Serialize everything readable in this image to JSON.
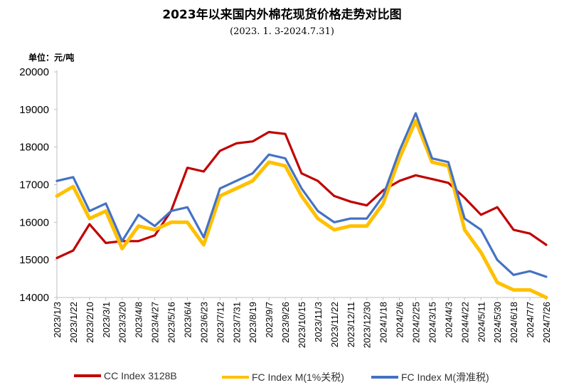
{
  "title": "2023年以来国内外棉花现货价格走势对比图",
  "subtitle": "(2023. 1. 3-2024.7.31)",
  "unit": "单位：元/吨",
  "colors": {
    "cc_index": "#C00000",
    "fc_1pct": "#FFC000",
    "fc_slide": "#4472C4"
  },
  "chart_data": {
    "type": "line",
    "title": "2023年以来国内外棉花现货价格走势对比图",
    "subtitle": "(2023. 1. 3-2024.7.31)",
    "ylabel": "单位：元/吨",
    "ylim": [
      14000,
      20000
    ],
    "yticks": [
      "20000",
      "19000",
      "18000",
      "17000",
      "16000",
      "15000",
      "14000"
    ],
    "xticks": [
      "2023/1/3",
      "2023/1/22",
      "2023/2/10",
      "2023/3/1",
      "2023/3/20",
      "2023/4/8",
      "2023/4/27",
      "2023/5/16",
      "2023/6/4",
      "2023/6/23",
      "2023/7/12",
      "2023/7/31",
      "2023/8/19",
      "2023/9/7",
      "2023/9/26",
      "2023/10/15",
      "2023/11/3",
      "2023/11/22",
      "2023/12/11",
      "2023/12/30",
      "2024/1/18",
      "2024/2/6",
      "2024/2/25",
      "2024/3/15",
      "2024/4/3",
      "2024/4/22",
      "2024/5/11",
      "2024/5/30",
      "2024/6/18",
      "2024/7/7",
      "2024/7/26"
    ],
    "grid": false,
    "legend_position": "bottom",
    "x": [
      "2023/1/3",
      "2023/1/22",
      "2023/2/10",
      "2023/3/1",
      "2023/3/20",
      "2023/4/8",
      "2023/4/27",
      "2023/5/16",
      "2023/6/4",
      "2023/6/23",
      "2023/7/12",
      "2023/7/31",
      "2023/8/19",
      "2023/9/7",
      "2023/9/26",
      "2023/10/15",
      "2023/11/3",
      "2023/11/22",
      "2023/12/11",
      "2023/12/30",
      "2024/1/18",
      "2024/2/6",
      "2024/2/25",
      "2024/3/15",
      "2024/4/3",
      "2024/4/22",
      "2024/5/11",
      "2024/5/30",
      "2024/6/18",
      "2024/7/7",
      "2024/7/26"
    ],
    "series": [
      {
        "name": "CC Index 3128B",
        "color": "#C00000",
        "values": [
          15050,
          15250,
          15950,
          15450,
          15500,
          15500,
          15650,
          16300,
          17450,
          17350,
          17900,
          18100,
          18150,
          18400,
          18350,
          17300,
          17100,
          16700,
          16550,
          16450,
          16850,
          17100,
          17250,
          17150,
          17050,
          16650,
          16200,
          16400,
          15800,
          15700,
          15400
        ]
      },
      {
        "name": "FC Index M(1%关税)",
        "color": "#FFC000",
        "values": [
          16700,
          16950,
          16100,
          16300,
          15300,
          15900,
          15800,
          16000,
          16000,
          15400,
          16700,
          16900,
          17100,
          17600,
          17500,
          16700,
          16100,
          15800,
          15900,
          15900,
          16500,
          17700,
          18700,
          17600,
          17500,
          15800,
          15200,
          14400,
          14200,
          14200,
          14000
        ]
      },
      {
        "name": "FC Index M(滑准税)",
        "color": "#4472C4",
        "values": [
          17100,
          17200,
          16300,
          16500,
          15500,
          16200,
          15900,
          16300,
          16400,
          15600,
          16900,
          17100,
          17300,
          17800,
          17700,
          16900,
          16300,
          16000,
          16100,
          16100,
          16700,
          17900,
          18900,
          17700,
          17600,
          16100,
          15800,
          15000,
          14600,
          14700,
          14550
        ]
      }
    ]
  },
  "legend": [
    {
      "label": "CC Index 3128B",
      "color": "#C00000"
    },
    {
      "label": "FC Index M(1%关税)",
      "color": "#FFC000"
    },
    {
      "label": "FC Index M(滑准税)",
      "color": "#4472C4"
    }
  ]
}
